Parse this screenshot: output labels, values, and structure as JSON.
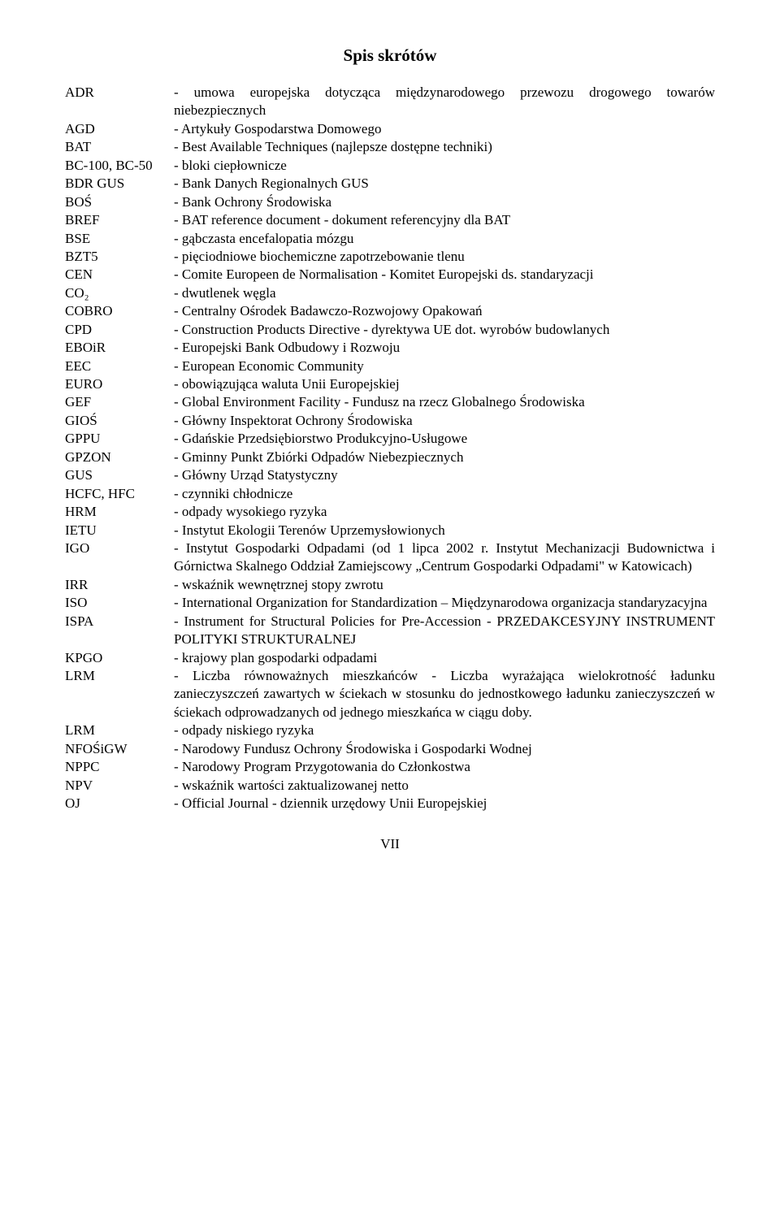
{
  "title": "Spis skrótów",
  "text_color": "#000000",
  "background_color": "#ffffff",
  "title_fontsize": 21,
  "body_fontsize": 17,
  "entries": [
    {
      "abbr": "ADR",
      "def": "- umowa europejska dotycząca międzynarodowego przewozu drogowego towarów niebezpiecznych"
    },
    {
      "abbr": "AGD",
      "def": "- Artykuły Gospodarstwa Domowego"
    },
    {
      "abbr": "BAT",
      "def": "- Best Available Techniques (najlepsze dostępne techniki)"
    },
    {
      "abbr": "BC-100, BC-50",
      "def": "- bloki ciepłownicze"
    },
    {
      "abbr": "BDR GUS",
      "def": "- Bank Danych Regionalnych GUS"
    },
    {
      "abbr": "BOŚ",
      "def": "- Bank Ochrony Środowiska"
    },
    {
      "abbr": "BREF",
      "def": "- BAT reference document - dokument referencyjny dla BAT"
    },
    {
      "abbr": "BSE",
      "def": "- gąbczasta encefalopatia mózgu"
    },
    {
      "abbr": "BZT5",
      "def": "- pięciodniowe biochemiczne zapotrzebowanie tlenu"
    },
    {
      "abbr": "CEN",
      "def": "- Comite Europeen de Normalisation - Komitet Europejski ds. standaryzacji"
    },
    {
      "abbr": "CO₂",
      "def": "- dwutlenek węgla"
    },
    {
      "abbr": "COBRO",
      "def": "- Centralny Ośrodek Badawczo-Rozwojowy Opakowań"
    },
    {
      "abbr": "CPD",
      "def": "- Construction Products Directive - dyrektywa UE dot. wyrobów budowlanych"
    },
    {
      "abbr": "EBOiR",
      "def": "- Europejski Bank Odbudowy i Rozwoju"
    },
    {
      "abbr": "EEC",
      "def": "- European Economic Community"
    },
    {
      "abbr": "EURO",
      "def": "- obowiązująca waluta Unii Europejskiej"
    },
    {
      "abbr": "GEF",
      "def": "- Global Environment Facility - Fundusz na rzecz Globalnego Środowiska"
    },
    {
      "abbr": "GIOŚ",
      "def": "- Główny Inspektorat Ochrony Środowiska"
    },
    {
      "abbr": "GPPU",
      "def": "- Gdańskie Przedsiębiorstwo Produkcyjno-Usługowe"
    },
    {
      "abbr": "GPZON",
      "def": "- Gminny Punkt Zbiórki Odpadów Niebezpiecznych"
    },
    {
      "abbr": "GUS",
      "def": "- Główny Urząd Statystyczny"
    },
    {
      "abbr": "HCFC, HFC",
      "def": "- czynniki chłodnicze"
    },
    {
      "abbr": "HRM",
      "def": "- odpady wysokiego ryzyka"
    },
    {
      "abbr": "IETU",
      "def": "- Instytut Ekologii Terenów Uprzemysłowionych"
    },
    {
      "abbr": "IGO",
      "def": "- Instytut Gospodarki Odpadami (od 1 lipca 2002 r. Instytut Mechanizacji Budownictwa i Górnictwa Skalnego Oddział Zamiejscowy „Centrum Gospodarki Odpadami\" w Katowicach)"
    },
    {
      "abbr": "IRR",
      "def": "- wskaźnik wewnętrznej stopy zwrotu"
    },
    {
      "abbr": "ISO",
      "def": "- International Organization for Standardization – Międzynarodowa organizacja standaryzacyjna"
    },
    {
      "abbr": "ISPA",
      "def": "- Instrument for Structural Policies for Pre-Accession - PRZEDAKCESYJNY INSTRUMENT POLITYKI STRUKTURALNEJ"
    },
    {
      "abbr": "KPGO",
      "def": "- krajowy plan gospodarki odpadami"
    },
    {
      "abbr": "LRM",
      "def": "- Liczba równoważnych mieszkańców - Liczba wyrażająca wielokrotność ładunku zanieczyszczeń zawartych w ściekach w stosunku do jednostkowego ładunku zanieczyszczeń w ściekach odprowadzanych od jednego mieszkańca w ciągu doby."
    },
    {
      "abbr": "LRM",
      "def": "- odpady niskiego ryzyka"
    },
    {
      "abbr": "NFOŚiGW",
      "def": "- Narodowy Fundusz Ochrony Środowiska i Gospodarki Wodnej"
    },
    {
      "abbr": "NPPC",
      "def": "- Narodowy Program Przygotowania do Członkostwa"
    },
    {
      "abbr": "NPV",
      "def": "- wskaźnik wartości zaktualizowanej netto"
    },
    {
      "abbr": "OJ",
      "def": "- Official Journal - dziennik urzędowy Unii Europejskiej"
    }
  ],
  "page_number": "VII"
}
